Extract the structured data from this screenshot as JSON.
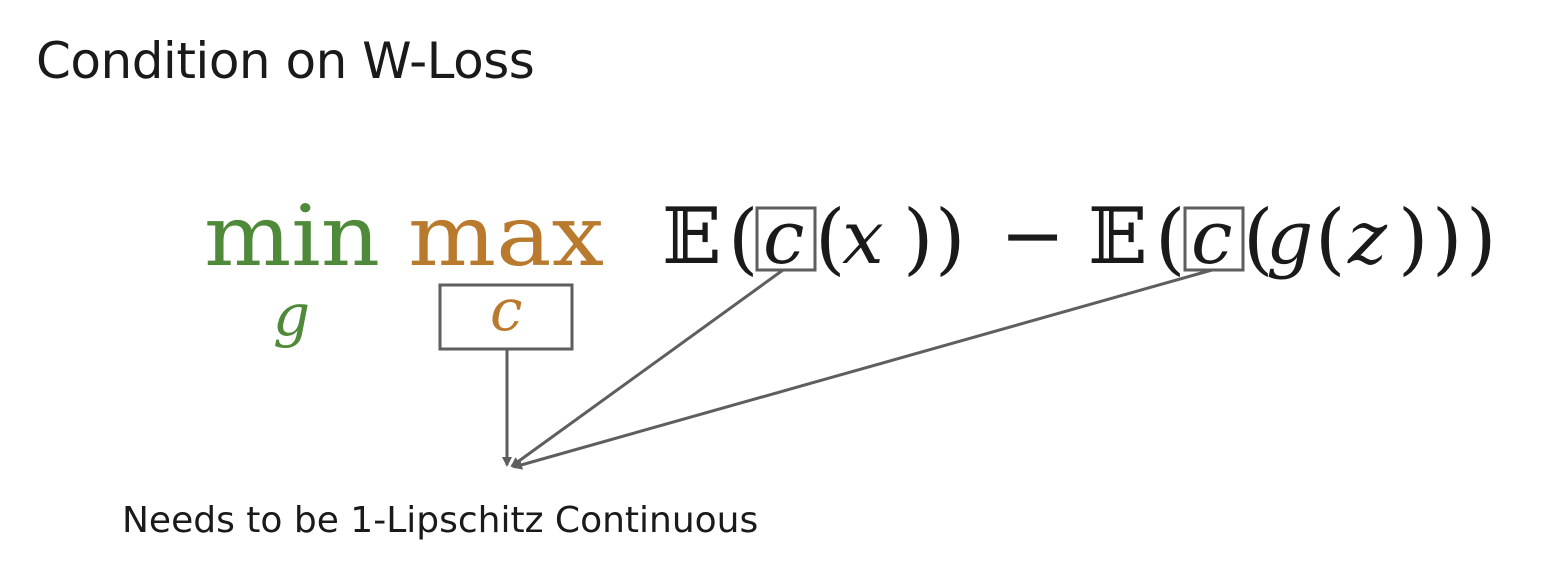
{
  "title": "Condition on W-Loss",
  "formula": {
    "min_op": "min",
    "min_sub": "g",
    "max_op": "max",
    "max_sub": "c",
    "expectation": "𝔼",
    "open_paren": "(",
    "close_paren": ")",
    "critic": "c",
    "real_var": "x",
    "minus": "−",
    "generator": "g",
    "noise_var": "z"
  },
  "caption": "Needs to be 1-Lipschitz Continuous",
  "colors": {
    "min": "#4f8a3a",
    "max": "#b97a2e",
    "box": "#5e5e5e",
    "arrow": "#5e5e5e",
    "text": "#1a1a1a"
  }
}
